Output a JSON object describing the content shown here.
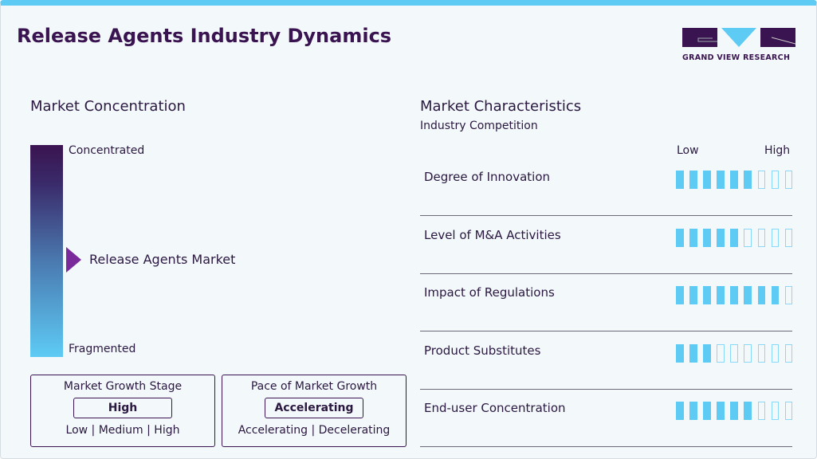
{
  "title": "Release Agents Industry Dynamics",
  "logo": {
    "text": "GRAND VIEW RESEARCH"
  },
  "concentration": {
    "heading": "Market Concentration",
    "top": "Concentrated",
    "bottom": "Fragmented",
    "marker": "Release Agents Market"
  },
  "growth_stage": {
    "title": "Market Growth Stage",
    "value": "High",
    "options": "Low | Medium | High"
  },
  "growth_pace": {
    "title": "Pace of Market Growth",
    "value": "Accelerating",
    "options": "Accelerating | Decelerating"
  },
  "characteristics": {
    "heading": "Market Characteristics",
    "subheading": "Industry Competition",
    "low": "Low",
    "high": "High",
    "max": 9,
    "items": [
      {
        "label": "Degree of Innovation",
        "level": 6
      },
      {
        "label": "Level of M&A Activities",
        "level": 5
      },
      {
        "label": "Impact of Regulations",
        "level": 8
      },
      {
        "label": "Product Substitutes",
        "level": 3
      },
      {
        "label": "End-user Concentration",
        "level": 6
      }
    ]
  },
  "colors": {
    "accent": "#5ecbf5",
    "brand": "#3a1450",
    "marker": "#7a2a9a"
  }
}
